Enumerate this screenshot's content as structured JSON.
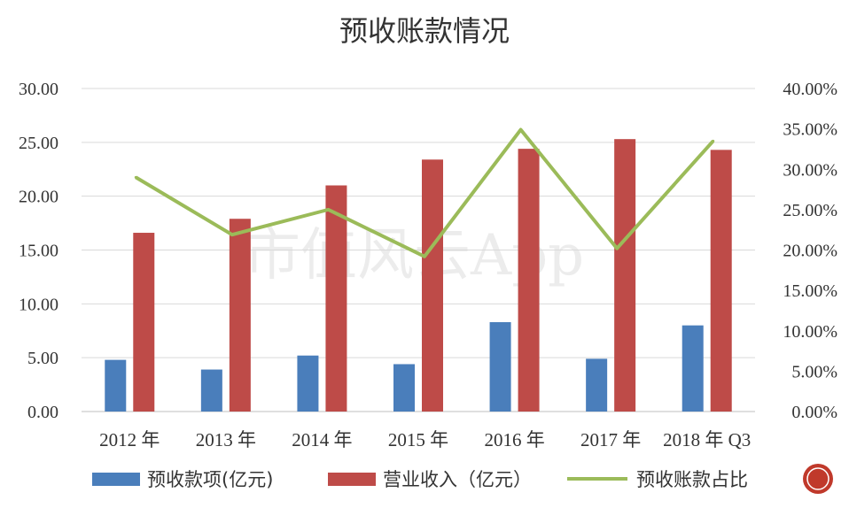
{
  "chart_data": {
    "type": "bar",
    "title": "预收账款情况",
    "categories": [
      "2012 年",
      "2013 年",
      "2014 年",
      "2015 年",
      "2016 年",
      "2017 年",
      "2018 年 Q3"
    ],
    "series": [
      {
        "name": "预收款项(亿元)",
        "type": "bar",
        "axis": "left",
        "color": "#4A7EBB",
        "values": [
          4.8,
          3.9,
          5.2,
          4.4,
          8.3,
          4.9,
          8.0
        ]
      },
      {
        "name": "营业收入（亿元）",
        "type": "bar",
        "axis": "left",
        "color": "#BE4B48",
        "values": [
          16.6,
          17.9,
          21.0,
          23.4,
          24.4,
          25.3,
          24.3
        ]
      },
      {
        "name": "预收账款占比",
        "type": "line",
        "axis": "right",
        "color": "#9BBB59",
        "values": [
          29.0,
          21.9,
          25.0,
          19.2,
          34.9,
          20.2,
          33.5
        ]
      }
    ],
    "y_left": {
      "min": 0,
      "max": 30,
      "step": 5,
      "tick_labels": [
        "0.00",
        "5.00",
        "10.00",
        "15.00",
        "20.00",
        "25.00",
        "30.00"
      ]
    },
    "y_right": {
      "min": 0,
      "max": 40,
      "step": 5,
      "tick_labels": [
        "0.00%",
        "5.00%",
        "10.00%",
        "15.00%",
        "20.00%",
        "25.00%",
        "30.00%",
        "35.00%",
        "40.00%"
      ]
    },
    "grid": true,
    "legend_position": "bottom",
    "watermark": "市值风云App"
  }
}
